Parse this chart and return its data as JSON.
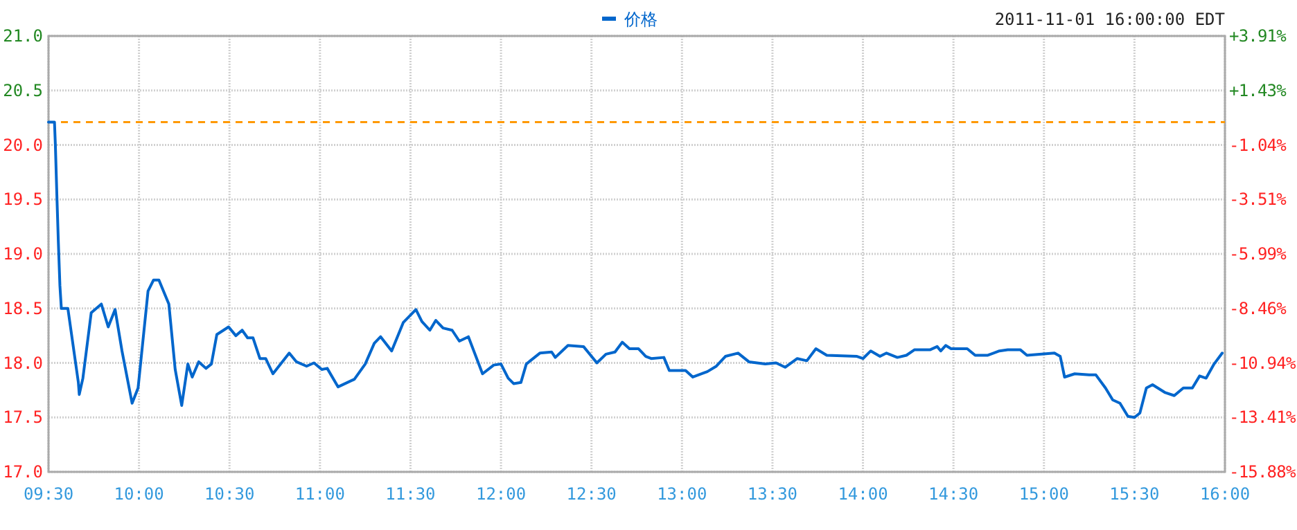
{
  "chart_data": {
    "type": "line",
    "legend": "top",
    "grid": true,
    "marker": "none",
    "line_style": "solid",
    "annotations": [
      "2011-11-01 16:00:00 EDT"
    ],
    "xlim": [
      9.5,
      16
    ],
    "xticks": [
      {
        "value": 9.5,
        "label": "09:30"
      },
      {
        "value": 10,
        "label": "10:00"
      },
      {
        "value": 10.5,
        "label": "10:30"
      },
      {
        "value": 11,
        "label": "11:00"
      },
      {
        "value": 11.5,
        "label": "11:30"
      },
      {
        "value": 12,
        "label": "12:00"
      },
      {
        "value": 12.5,
        "label": "12:30"
      },
      {
        "value": 13,
        "label": "13:00"
      },
      {
        "value": 13.5,
        "label": "13:30"
      },
      {
        "value": 14,
        "label": "14:00"
      },
      {
        "value": 14.5,
        "label": "14:30"
      },
      {
        "value": 15,
        "label": "15:00"
      },
      {
        "value": 15.5,
        "label": "15:30"
      },
      {
        "value": 16,
        "label": "16:00"
      }
    ],
    "ylim": [
      17,
      21
    ],
    "yticks": [
      {
        "value": 17,
        "label": "17.0"
      },
      {
        "value": 17.5,
        "label": "17.5"
      },
      {
        "value": 18,
        "label": "18.0"
      },
      {
        "value": 18.5,
        "label": "18.5"
      },
      {
        "value": 19,
        "label": "19.0"
      },
      {
        "value": 19.5,
        "label": "19.5"
      },
      {
        "value": 20,
        "label": "20.0"
      },
      {
        "value": 20.5,
        "label": "20.5"
      },
      {
        "value": 21,
        "label": "21.0"
      }
    ],
    "y2lim": [
      -15.88,
      3.91
    ],
    "y2ticks": [
      {
        "value": -15.88,
        "label": "-15.88%"
      },
      {
        "value": -13.41,
        "label": "-13.41%"
      },
      {
        "value": -10.94,
        "label": "-10.94%"
      },
      {
        "value": -8.46,
        "label": "-8.46%"
      },
      {
        "value": -5.99,
        "label": "-5.99%"
      },
      {
        "value": -3.51,
        "label": "-3.51%"
      },
      {
        "value": -1.04,
        "label": "-1.04%"
      },
      {
        "value": 1.43,
        "label": "+1.43%"
      },
      {
        "value": 3.91,
        "label": "+3.91%"
      }
    ],
    "ref_lines": [
      {
        "axis": "y",
        "value": 20.21,
        "color": "#ff9900",
        "line_style": "dashed"
      }
    ],
    "series": [
      {
        "name": "价格",
        "color": "#0066cc",
        "x": [
          9.5,
          9.533,
          9.538,
          9.546,
          9.554,
          9.563,
          9.571,
          9.607,
          9.665,
          9.67,
          9.69,
          9.736,
          9.792,
          9.83,
          9.868,
          9.906,
          9.962,
          9.995,
          10.05,
          10.08,
          10.11,
          10.165,
          10.2,
          10.236,
          10.27,
          10.294,
          10.33,
          10.37,
          10.4,
          10.43,
          10.495,
          10.535,
          10.57,
          10.6,
          10.63,
          10.668,
          10.7,
          10.74,
          10.83,
          10.87,
          10.926,
          10.967,
          11.01,
          11.04,
          11.1,
          11.19,
          11.25,
          11.3,
          11.335,
          11.396,
          11.46,
          11.53,
          11.563,
          11.607,
          11.64,
          11.68,
          11.73,
          11.77,
          11.82,
          11.898,
          11.96,
          12.0,
          12.04,
          12.07,
          12.11,
          12.14,
          12.215,
          12.28,
          12.3,
          12.37,
          12.456,
          12.53,
          12.58,
          12.63,
          12.67,
          12.71,
          12.76,
          12.8,
          12.83,
          12.9,
          12.93,
          13.02,
          13.06,
          13.14,
          13.19,
          13.24,
          13.31,
          13.37,
          13.46,
          13.52,
          13.57,
          13.637,
          13.69,
          13.74,
          13.8,
          13.967,
          14.0,
          14.043,
          14.094,
          14.13,
          14.19,
          14.24,
          14.284,
          14.37,
          14.41,
          14.43,
          14.457,
          14.487,
          14.576,
          14.62,
          14.69,
          14.754,
          14.8,
          14.87,
          14.906,
          15.058,
          15.09,
          15.114,
          15.17,
          15.25,
          15.287,
          15.34,
          15.38,
          15.42,
          15.464,
          15.5,
          15.53,
          15.566,
          15.6,
          15.667,
          15.72,
          15.77,
          15.82,
          15.86,
          15.896,
          15.94,
          15.985
        ],
        "values": [
          20.21,
          20.21,
          20.0,
          19.55,
          19.13,
          18.71,
          18.5,
          18.5,
          17.82,
          17.71,
          17.86,
          18.46,
          18.54,
          18.33,
          18.49,
          18.11,
          17.63,
          17.77,
          18.66,
          18.76,
          18.76,
          18.54,
          17.94,
          17.61,
          17.99,
          17.87,
          18.01,
          17.95,
          17.99,
          18.26,
          18.33,
          18.25,
          18.3,
          18.23,
          18.23,
          18.04,
          18.04,
          17.9,
          18.09,
          18.01,
          17.97,
          18.0,
          17.94,
          17.95,
          17.78,
          17.85,
          17.99,
          18.18,
          18.24,
          18.11,
          18.37,
          18.49,
          18.38,
          18.3,
          18.39,
          18.32,
          18.3,
          18.2,
          18.24,
          17.9,
          17.98,
          17.99,
          17.86,
          17.81,
          17.82,
          17.99,
          18.09,
          18.1,
          18.05,
          18.16,
          18.15,
          18.0,
          18.08,
          18.1,
          18.19,
          18.13,
          18.13,
          18.06,
          18.04,
          18.05,
          17.93,
          17.93,
          17.87,
          17.92,
          17.97,
          18.06,
          18.09,
          18.01,
          17.99,
          18.0,
          17.96,
          18.04,
          18.02,
          18.13,
          18.07,
          18.06,
          18.04,
          18.11,
          18.06,
          18.09,
          18.05,
          18.07,
          18.12,
          18.12,
          18.15,
          18.11,
          18.16,
          18.13,
          18.13,
          18.07,
          18.07,
          18.11,
          18.12,
          18.12,
          18.07,
          18.09,
          18.06,
          17.87,
          17.9,
          17.89,
          17.89,
          17.77,
          17.66,
          17.63,
          17.51,
          17.5,
          17.54,
          17.77,
          17.8,
          17.73,
          17.7,
          17.77,
          17.77,
          17.88,
          17.86,
          17.99,
          18.09
        ]
      }
    ]
  }
}
